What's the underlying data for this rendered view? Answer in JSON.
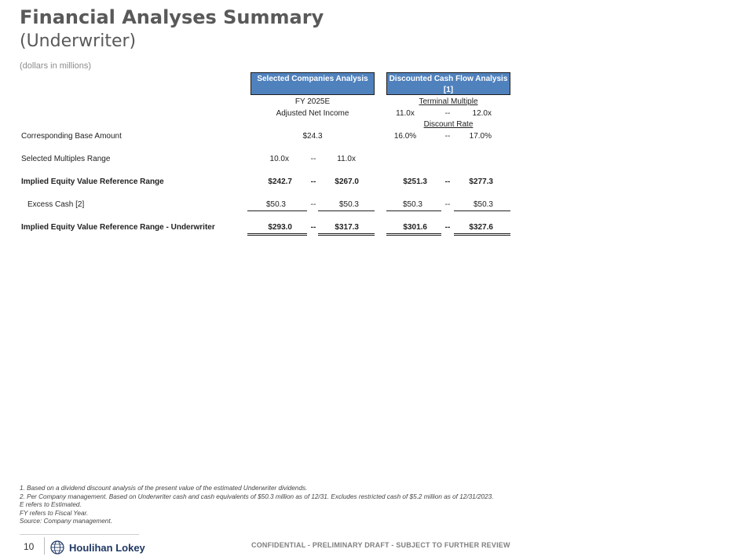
{
  "page": {
    "title": "Financial Analyses Summary",
    "subtitle": "(Underwriter)",
    "units": "(dollars in millions)"
  },
  "columns": {
    "selected_companies": {
      "header": "Selected Companies Analysis",
      "sub1": "FY 2025E",
      "sub2": "Adjusted Net Income"
    },
    "dcf": {
      "header": "Discounted Cash Flow Analysis [1]",
      "terminal_multiple_label": "Terminal Multiple",
      "terminal_low": "11.0x",
      "terminal_sep": "--",
      "terminal_high": "12.0x",
      "discount_rate_label": "Discount Rate"
    }
  },
  "rows": {
    "base_amount": {
      "label": "Corresponding Base Amount",
      "sc_value": "$24.3",
      "dcf_low": "16.0%",
      "dcf_sep": "--",
      "dcf_high": "17.0%"
    },
    "multiples_range": {
      "label": "Selected Multiples Range",
      "sc_low": "10.0x",
      "sc_sep": "--",
      "sc_high": "11.0x"
    },
    "implied_equity": {
      "label": "Implied Equity Value Reference Range",
      "sc_low": "$242.7",
      "sc_sep": "--",
      "sc_high": "$267.0",
      "dcf_low": "$251.3",
      "dcf_sep": "--",
      "dcf_high": "$277.3"
    },
    "excess_cash": {
      "label": "Excess Cash [2]",
      "sc_low": "$50.3",
      "sc_sep": "--",
      "sc_high": "$50.3",
      "dcf_low": "$50.3",
      "dcf_sep": "--",
      "dcf_high": "$50.3"
    },
    "implied_equity_uw": {
      "label": "Implied Equity Value Reference Range - Underwriter",
      "sc_low": "$293.0",
      "sc_sep": "--",
      "sc_high": "$317.3",
      "dcf_low": "$301.6",
      "dcf_sep": "--",
      "dcf_high": "$327.6"
    }
  },
  "notes": [
    "1. Based on a dividend discount analysis of the present value of the estimated Underwriter dividends.",
    "2. Per Company management. Based on Underwriter cash and cash equivalents of $50.3 million as of 12/31. Excludes restricted cash of $5.2 million as of 12/31/2023.",
    "E refers to Estimated.",
    "FY refers to Fiscal Year.",
    "Source: Company management."
  ],
  "footer": {
    "page_number": "10",
    "logo_text": "Houlihan Lokey",
    "confidential": "CONFIDENTIAL - PRELIMINARY DRAFT - SUBJECT TO FURTHER REVIEW"
  },
  "colors": {
    "header_fill": "#4f81bd",
    "title_gray": "#595959",
    "brand_navy": "#1f3864"
  },
  "icons": [
    "houlihan-lokey-globe-logo"
  ]
}
